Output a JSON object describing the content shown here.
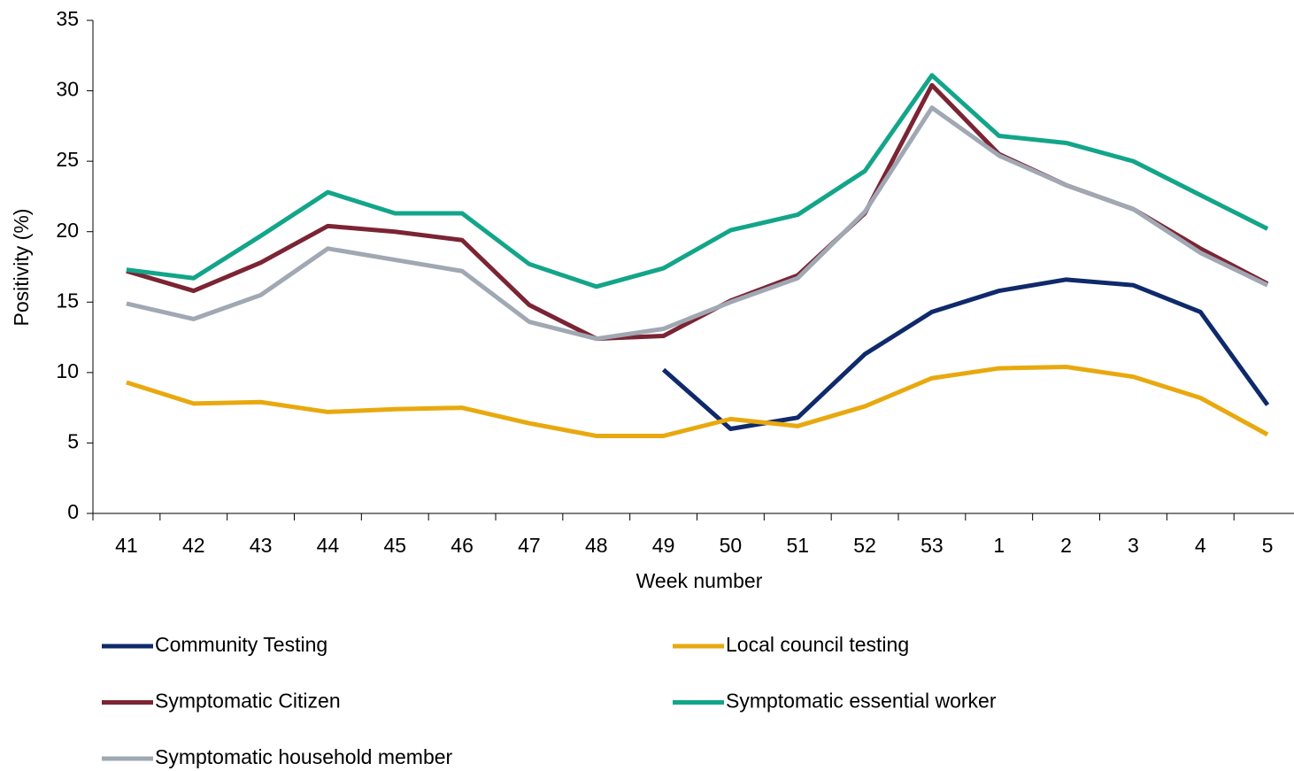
{
  "chart_data": {
    "type": "line",
    "x_label": "Week number",
    "y_label": "Positivity (%)",
    "categories": [
      "41",
      "42",
      "43",
      "44",
      "45",
      "46",
      "47",
      "48",
      "49",
      "50",
      "51",
      "52",
      "53",
      "1",
      "2",
      "3",
      "4",
      "5"
    ],
    "ylim": [
      0,
      35
    ],
    "yticks": [
      0,
      5,
      10,
      15,
      20,
      25,
      30,
      35
    ],
    "grid": false,
    "series": [
      {
        "name": "Community Testing",
        "color": "#0f2a6b",
        "values": [
          null,
          null,
          null,
          null,
          null,
          null,
          null,
          null,
          10.2,
          6.0,
          6.8,
          11.3,
          14.3,
          15.8,
          16.6,
          16.2,
          14.3,
          7.7
        ]
      },
      {
        "name": "Local council testing",
        "color": "#e8a90f",
        "values": [
          9.3,
          7.8,
          7.9,
          7.2,
          7.4,
          7.5,
          6.4,
          5.5,
          5.5,
          6.7,
          6.2,
          7.6,
          9.6,
          10.3,
          10.4,
          9.7,
          8.2,
          5.6
        ]
      },
      {
        "name": "Symptomatic Citizen",
        "color": "#7b2433",
        "values": [
          17.2,
          15.8,
          17.8,
          20.4,
          20.0,
          19.4,
          14.8,
          12.4,
          12.6,
          15.1,
          16.9,
          21.3,
          30.4,
          25.5,
          23.3,
          21.6,
          18.8,
          16.3
        ]
      },
      {
        "name": "Symptomatic essential worker",
        "color": "#13a58a",
        "values": [
          17.3,
          16.7,
          19.7,
          22.8,
          21.3,
          21.3,
          17.7,
          16.1,
          17.4,
          20.1,
          21.2,
          24.3,
          31.1,
          26.8,
          26.3,
          25.0,
          22.6,
          20.2
        ]
      },
      {
        "name": "Symptomatic household member",
        "color": "#a0a8b3",
        "values": [
          14.9,
          13.8,
          15.5,
          18.8,
          18.0,
          17.2,
          13.6,
          12.4,
          13.1,
          15.0,
          16.7,
          21.4,
          28.8,
          25.4,
          23.3,
          21.6,
          18.5,
          16.2
        ]
      }
    ]
  }
}
